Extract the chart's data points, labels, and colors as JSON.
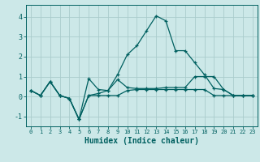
{
  "xlabel": "Humidex (Indice chaleur)",
  "background_color": "#cce8e8",
  "grid_color": "#aacccc",
  "line_color": "#006060",
  "xlim": [
    -0.5,
    23.5
  ],
  "ylim": [
    -1.5,
    4.6
  ],
  "yticks": [
    -1,
    0,
    1,
    2,
    3,
    4
  ],
  "xticks": [
    0,
    1,
    2,
    3,
    4,
    5,
    6,
    7,
    8,
    9,
    10,
    11,
    12,
    13,
    14,
    15,
    16,
    17,
    18,
    19,
    20,
    21,
    22,
    23
  ],
  "series1_x": [
    0,
    1,
    2,
    3,
    4,
    5,
    6,
    7,
    8,
    9,
    10,
    11,
    12,
    13,
    14,
    15,
    16,
    17,
    18,
    19,
    20,
    21,
    22,
    23
  ],
  "series1_y": [
    0.3,
    0.05,
    0.75,
    0.05,
    -0.1,
    -1.15,
    0.9,
    0.35,
    0.3,
    1.1,
    2.1,
    2.55,
    3.3,
    4.05,
    3.8,
    2.3,
    2.3,
    1.7,
    1.1,
    0.4,
    0.35,
    0.05,
    0.05,
    0.05
  ],
  "series2_x": [
    0,
    1,
    2,
    3,
    4,
    5,
    6,
    7,
    8,
    9,
    10,
    11,
    12,
    13,
    14,
    15,
    16,
    17,
    18,
    19,
    20,
    21,
    22,
    23
  ],
  "series2_y": [
    0.3,
    0.05,
    0.75,
    0.05,
    -0.1,
    -1.15,
    0.05,
    0.15,
    0.3,
    0.85,
    0.45,
    0.4,
    0.4,
    0.4,
    0.45,
    0.45,
    0.45,
    1.0,
    1.0,
    1.0,
    0.35,
    0.05,
    0.05,
    0.05
  ],
  "series3_x": [
    0,
    1,
    2,
    3,
    4,
    5,
    6,
    7,
    8,
    9,
    10,
    11,
    12,
    13,
    14,
    15,
    16,
    17,
    18,
    19,
    20,
    21,
    22,
    23
  ],
  "series3_y": [
    0.3,
    0.05,
    0.75,
    0.05,
    -0.1,
    -1.15,
    0.05,
    0.05,
    0.05,
    0.05,
    0.3,
    0.35,
    0.35,
    0.35,
    0.35,
    0.35,
    0.35,
    0.35,
    0.35,
    0.05,
    0.05,
    0.05,
    0.05,
    0.05
  ]
}
